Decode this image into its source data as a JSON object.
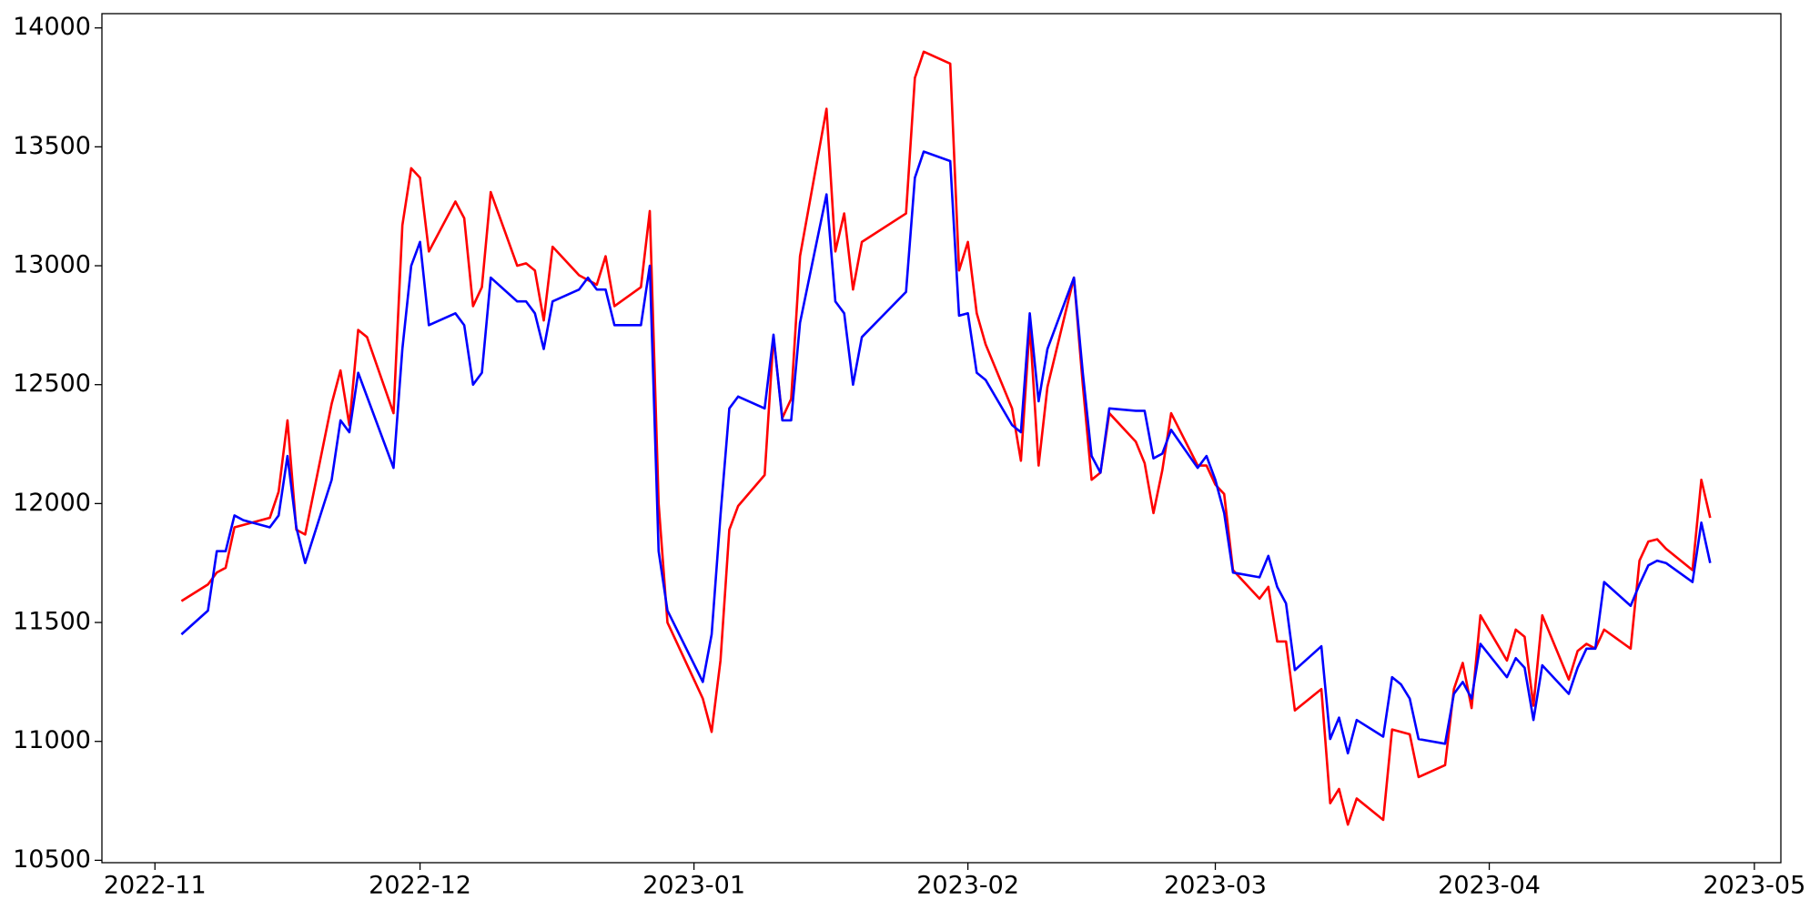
{
  "chart_data": {
    "type": "line",
    "x": [
      "2022-11-04",
      "2022-11-07",
      "2022-11-08",
      "2022-11-09",
      "2022-11-10",
      "2022-11-11",
      "2022-11-14",
      "2022-11-15",
      "2022-11-16",
      "2022-11-17",
      "2022-11-18",
      "2022-11-21",
      "2022-11-22",
      "2022-11-23",
      "2022-11-24",
      "2022-11-25",
      "2022-11-28",
      "2022-11-29",
      "2022-11-30",
      "2022-12-01",
      "2022-12-02",
      "2022-12-05",
      "2022-12-06",
      "2022-12-07",
      "2022-12-08",
      "2022-12-09",
      "2022-12-12",
      "2022-12-13",
      "2022-12-14",
      "2022-12-15",
      "2022-12-16",
      "2022-12-19",
      "2022-12-20",
      "2022-12-21",
      "2022-12-22",
      "2022-12-23",
      "2022-12-26",
      "2022-12-27",
      "2022-12-28",
      "2022-12-29",
      "2023-01-02",
      "2023-01-03",
      "2023-01-04",
      "2023-01-05",
      "2023-01-06",
      "2023-01-09",
      "2023-01-10",
      "2023-01-11",
      "2023-01-12",
      "2023-01-13",
      "2023-01-16",
      "2023-01-17",
      "2023-01-18",
      "2023-01-19",
      "2023-01-20",
      "2023-01-25",
      "2023-01-26",
      "2023-01-27",
      "2023-01-30",
      "2023-01-31",
      "2023-02-01",
      "2023-02-02",
      "2023-02-03",
      "2023-02-06",
      "2023-02-07",
      "2023-02-08",
      "2023-02-09",
      "2023-02-10",
      "2023-02-13",
      "2023-02-14",
      "2023-02-15",
      "2023-02-16",
      "2023-02-17",
      "2023-02-20",
      "2023-02-21",
      "2023-02-22",
      "2023-02-23",
      "2023-02-24",
      "2023-02-27",
      "2023-02-28",
      "2023-03-01",
      "2023-03-02",
      "2023-03-03",
      "2023-03-06",
      "2023-03-07",
      "2023-03-08",
      "2023-03-09",
      "2023-03-10",
      "2023-03-13",
      "2023-03-14",
      "2023-03-15",
      "2023-03-16",
      "2023-03-17",
      "2023-03-20",
      "2023-03-21",
      "2023-03-22",
      "2023-03-23",
      "2023-03-24",
      "2023-03-27",
      "2023-03-28",
      "2023-03-29",
      "2023-03-30",
      "2023-03-31",
      "2023-04-03",
      "2023-04-04",
      "2023-04-05",
      "2023-04-06",
      "2023-04-07",
      "2023-04-10",
      "2023-04-11",
      "2023-04-12",
      "2023-04-13",
      "2023-04-14",
      "2023-04-17",
      "2023-04-18",
      "2023-04-19",
      "2023-04-20",
      "2023-04-21",
      "2023-04-24",
      "2023-04-25",
      "2023-04-26"
    ],
    "series": [
      {
        "color": "#ff0000",
        "values": [
          11590,
          11660,
          11710,
          11730,
          11900,
          11910,
          11940,
          12050,
          12350,
          11890,
          11870,
          12420,
          12560,
          12330,
          12730,
          12700,
          12380,
          13170,
          13410,
          13370,
          13060,
          13270,
          13200,
          12830,
          12910,
          13310,
          13000,
          13010,
          12980,
          12770,
          13080,
          12960,
          12940,
          12920,
          13040,
          12830,
          12910,
          13230,
          12000,
          11500,
          11180,
          11040,
          11340,
          11890,
          11990,
          12120,
          12700,
          12360,
          12440,
          13040,
          13660,
          13060,
          13220,
          12900,
          13100,
          13220,
          13790,
          13900,
          13850,
          12980,
          13100,
          12800,
          12670,
          12400,
          12180,
          12750,
          12160,
          12490,
          12950,
          12500,
          12100,
          12130,
          12380,
          12260,
          12170,
          11960,
          12140,
          12380,
          12160,
          12160,
          12080,
          12040,
          11720,
          11600,
          11650,
          11420,
          11420,
          11130,
          11220,
          10740,
          10800,
          10650,
          10760,
          10670,
          11050,
          11040,
          11030,
          10850,
          10900,
          11220,
          11330,
          11140,
          11530,
          11340,
          11470,
          11440,
          11150,
          11530,
          11260,
          11380,
          11410,
          11390,
          11470,
          11390,
          11760,
          11840,
          11850,
          11810,
          11720,
          12100,
          11940
        ]
      },
      {
        "color": "#0000ff",
        "values": [
          11450,
          11550,
          11800,
          11800,
          11950,
          11930,
          11900,
          11950,
          12200,
          11900,
          11750,
          12100,
          12350,
          12300,
          12550,
          12450,
          12150,
          12650,
          13000,
          13100,
          12750,
          12800,
          12750,
          12500,
          12550,
          12950,
          12850,
          12850,
          12800,
          12650,
          12850,
          12900,
          12950,
          12900,
          12900,
          12750,
          12750,
          13000,
          11800,
          11550,
          11250,
          11450,
          11950,
          12400,
          12450,
          12400,
          12710,
          12350,
          12350,
          12760,
          13300,
          12850,
          12800,
          12500,
          12700,
          12890,
          13370,
          13480,
          13440,
          12790,
          12800,
          12550,
          12520,
          12330,
          12300,
          12800,
          12430,
          12650,
          12950,
          12550,
          12200,
          12130,
          12400,
          12390,
          12390,
          12190,
          12210,
          12310,
          12150,
          12200,
          12100,
          11960,
          11710,
          11690,
          11780,
          11650,
          11580,
          11300,
          11400,
          11010,
          11100,
          10950,
          11090,
          11020,
          11270,
          11240,
          11180,
          11010,
          10990,
          11200,
          11250,
          11180,
          11410,
          11270,
          11350,
          11310,
          11090,
          11320,
          11200,
          11310,
          11390,
          11390,
          11670,
          11570,
          11660,
          11740,
          11760,
          11750,
          11670,
          11920,
          11750
        ]
      }
    ],
    "xlim": [
      "2022-10-26",
      "2023-05-04"
    ],
    "xticks": [
      {
        "value": "2022-11-01",
        "label": "2022-11"
      },
      {
        "value": "2022-12-01",
        "label": "2022-12"
      },
      {
        "value": "2023-01-01",
        "label": "2023-01"
      },
      {
        "value": "2023-02-01",
        "label": "2023-02"
      },
      {
        "value": "2023-03-01",
        "label": "2023-03"
      },
      {
        "value": "2023-04-01",
        "label": "2023-04"
      },
      {
        "value": "2023-05-01",
        "label": "2023-05"
      }
    ],
    "ylim": [
      10490,
      14060
    ],
    "yticks": [
      10500,
      11000,
      11500,
      12000,
      12500,
      13000,
      13500,
      14000
    ],
    "grid": false
  }
}
